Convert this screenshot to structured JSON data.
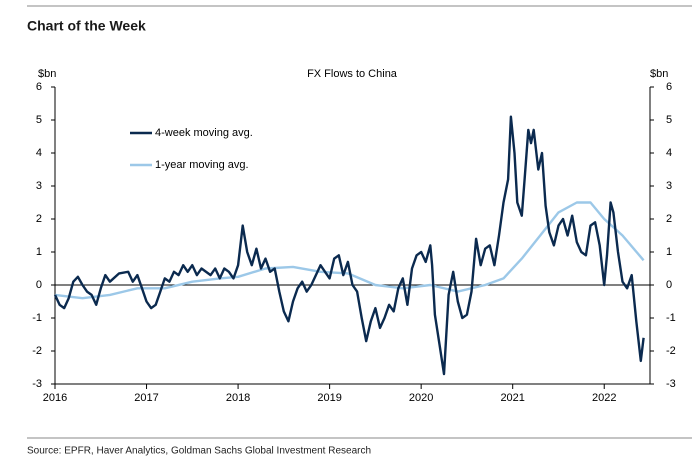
{
  "header": "Chart of the Week",
  "source": "Source: EPFR, Haver Analytics, Goldman Sachs Global Investment Research",
  "chart_data": {
    "type": "line",
    "title": "FX Flows to China",
    "y_label": "$bn",
    "y2_label": "$bn",
    "xlim": [
      2016,
      2022.5
    ],
    "xticks": [
      2016,
      2017,
      2018,
      2019,
      2020,
      2021,
      2022
    ],
    "ylim": [
      -3,
      6
    ],
    "yticks": [
      -3,
      -2,
      -1,
      0,
      1,
      2,
      3,
      4,
      5,
      6
    ],
    "y2lim": [
      -3,
      6
    ],
    "y2ticks": [
      -3,
      -2,
      -1,
      0,
      1,
      2,
      3,
      4,
      5,
      6
    ],
    "legend": "top-left",
    "series": [
      {
        "name": "4-week moving avg.",
        "color": "#0b2a4f",
        "x": [
          2016.0,
          2016.05,
          2016.1,
          2016.15,
          2016.2,
          2016.25,
          2016.3,
          2016.35,
          2016.4,
          2016.45,
          2016.5,
          2016.55,
          2016.6,
          2016.7,
          2016.8,
          2016.85,
          2016.9,
          2016.95,
          2017.0,
          2017.05,
          2017.1,
          2017.15,
          2017.2,
          2017.25,
          2017.3,
          2017.35,
          2017.4,
          2017.45,
          2017.5,
          2017.55,
          2017.6,
          2017.7,
          2017.75,
          2017.8,
          2017.85,
          2017.9,
          2017.95,
          2018.0,
          2018.05,
          2018.1,
          2018.15,
          2018.2,
          2018.25,
          2018.3,
          2018.35,
          2018.4,
          2018.45,
          2018.5,
          2018.55,
          2018.6,
          2018.65,
          2018.7,
          2018.75,
          2018.8,
          2018.85,
          2018.9,
          2018.95,
          2019.0,
          2019.05,
          2019.1,
          2019.15,
          2019.2,
          2019.25,
          2019.3,
          2019.35,
          2019.4,
          2019.45,
          2019.5,
          2019.55,
          2019.6,
          2019.65,
          2019.7,
          2019.75,
          2019.8,
          2019.85,
          2019.9,
          2019.95,
          2020.0,
          2020.05,
          2020.1,
          2020.12,
          2020.15,
          2020.2,
          2020.25,
          2020.3,
          2020.35,
          2020.4,
          2020.45,
          2020.5,
          2020.55,
          2020.6,
          2020.65,
          2020.7,
          2020.75,
          2020.8,
          2020.85,
          2020.9,
          2020.95,
          2020.98,
          2021.02,
          2021.05,
          2021.1,
          2021.13,
          2021.17,
          2021.2,
          2021.23,
          2021.28,
          2021.32,
          2021.36,
          2021.4,
          2021.45,
          2021.5,
          2021.55,
          2021.6,
          2021.65,
          2021.7,
          2021.75,
          2021.8,
          2021.85,
          2021.9,
          2021.95,
          2022.0,
          2022.03,
          2022.07,
          2022.1,
          2022.15,
          2022.2,
          2022.25,
          2022.3,
          2022.35,
          2022.4,
          2022.43
        ],
        "values": [
          -0.3,
          -0.6,
          -0.7,
          -0.4,
          0.1,
          0.25,
          0,
          -0.2,
          -0.3,
          -0.6,
          -0.1,
          0.3,
          0.1,
          0.35,
          0.4,
          0.1,
          0.3,
          -0.1,
          -0.5,
          -0.7,
          -0.6,
          -0.2,
          0.2,
          0.1,
          0.4,
          0.3,
          0.6,
          0.4,
          0.6,
          0.3,
          0.5,
          0.3,
          0.5,
          0.2,
          0.5,
          0.4,
          0.2,
          0.6,
          1.8,
          1.0,
          0.6,
          1.1,
          0.5,
          0.8,
          0.4,
          0.5,
          -0.2,
          -0.8,
          -1.1,
          -0.5,
          -0.1,
          0.1,
          -0.2,
          0.0,
          0.3,
          0.6,
          0.4,
          0.2,
          0.8,
          0.9,
          0.3,
          0.7,
          0.0,
          -0.2,
          -1.0,
          -1.7,
          -1.1,
          -0.7,
          -1.3,
          -1.0,
          -0.6,
          -0.8,
          -0.1,
          0.2,
          -0.6,
          0.5,
          0.9,
          1.0,
          0.7,
          1.2,
          0.6,
          -0.9,
          -1.8,
          -2.7,
          -0.3,
          0.4,
          -0.5,
          -1.0,
          -0.9,
          -0.2,
          1.4,
          0.6,
          1.1,
          1.2,
          0.6,
          1.5,
          2.5,
          3.2,
          5.1,
          4.0,
          2.5,
          2.1,
          3.2,
          4.7,
          4.3,
          4.7,
          3.5,
          4.0,
          2.4,
          1.6,
          1.2,
          1.8,
          2.0,
          1.5,
          2.1,
          1.3,
          1.0,
          0.9,
          1.8,
          1.9,
          1.2,
          0.0,
          0.9,
          2.5,
          2.2,
          1.0,
          0.1,
          -0.1,
          0.3,
          -1.1,
          -2.3,
          -1.6
        ]
      },
      {
        "name": "1-year moving avg.",
        "color": "#9cc8e8",
        "x": [
          2016.0,
          2016.3,
          2016.6,
          2016.9,
          2017.2,
          2017.5,
          2017.8,
          2018.0,
          2018.3,
          2018.6,
          2018.9,
          2019.2,
          2019.5,
          2019.8,
          2020.1,
          2020.4,
          2020.7,
          2020.9,
          2021.1,
          2021.3,
          2021.5,
          2021.7,
          2021.85,
          2022.0,
          2022.2,
          2022.43
        ],
        "values": [
          -0.3,
          -0.4,
          -0.3,
          -0.1,
          -0.1,
          0.1,
          0.2,
          0.25,
          0.5,
          0.55,
          0.4,
          0.35,
          0.0,
          -0.1,
          0.0,
          -0.2,
          0.0,
          0.2,
          0.8,
          1.5,
          2.2,
          2.5,
          2.5,
          2.0,
          1.5,
          0.75
        ]
      }
    ]
  }
}
